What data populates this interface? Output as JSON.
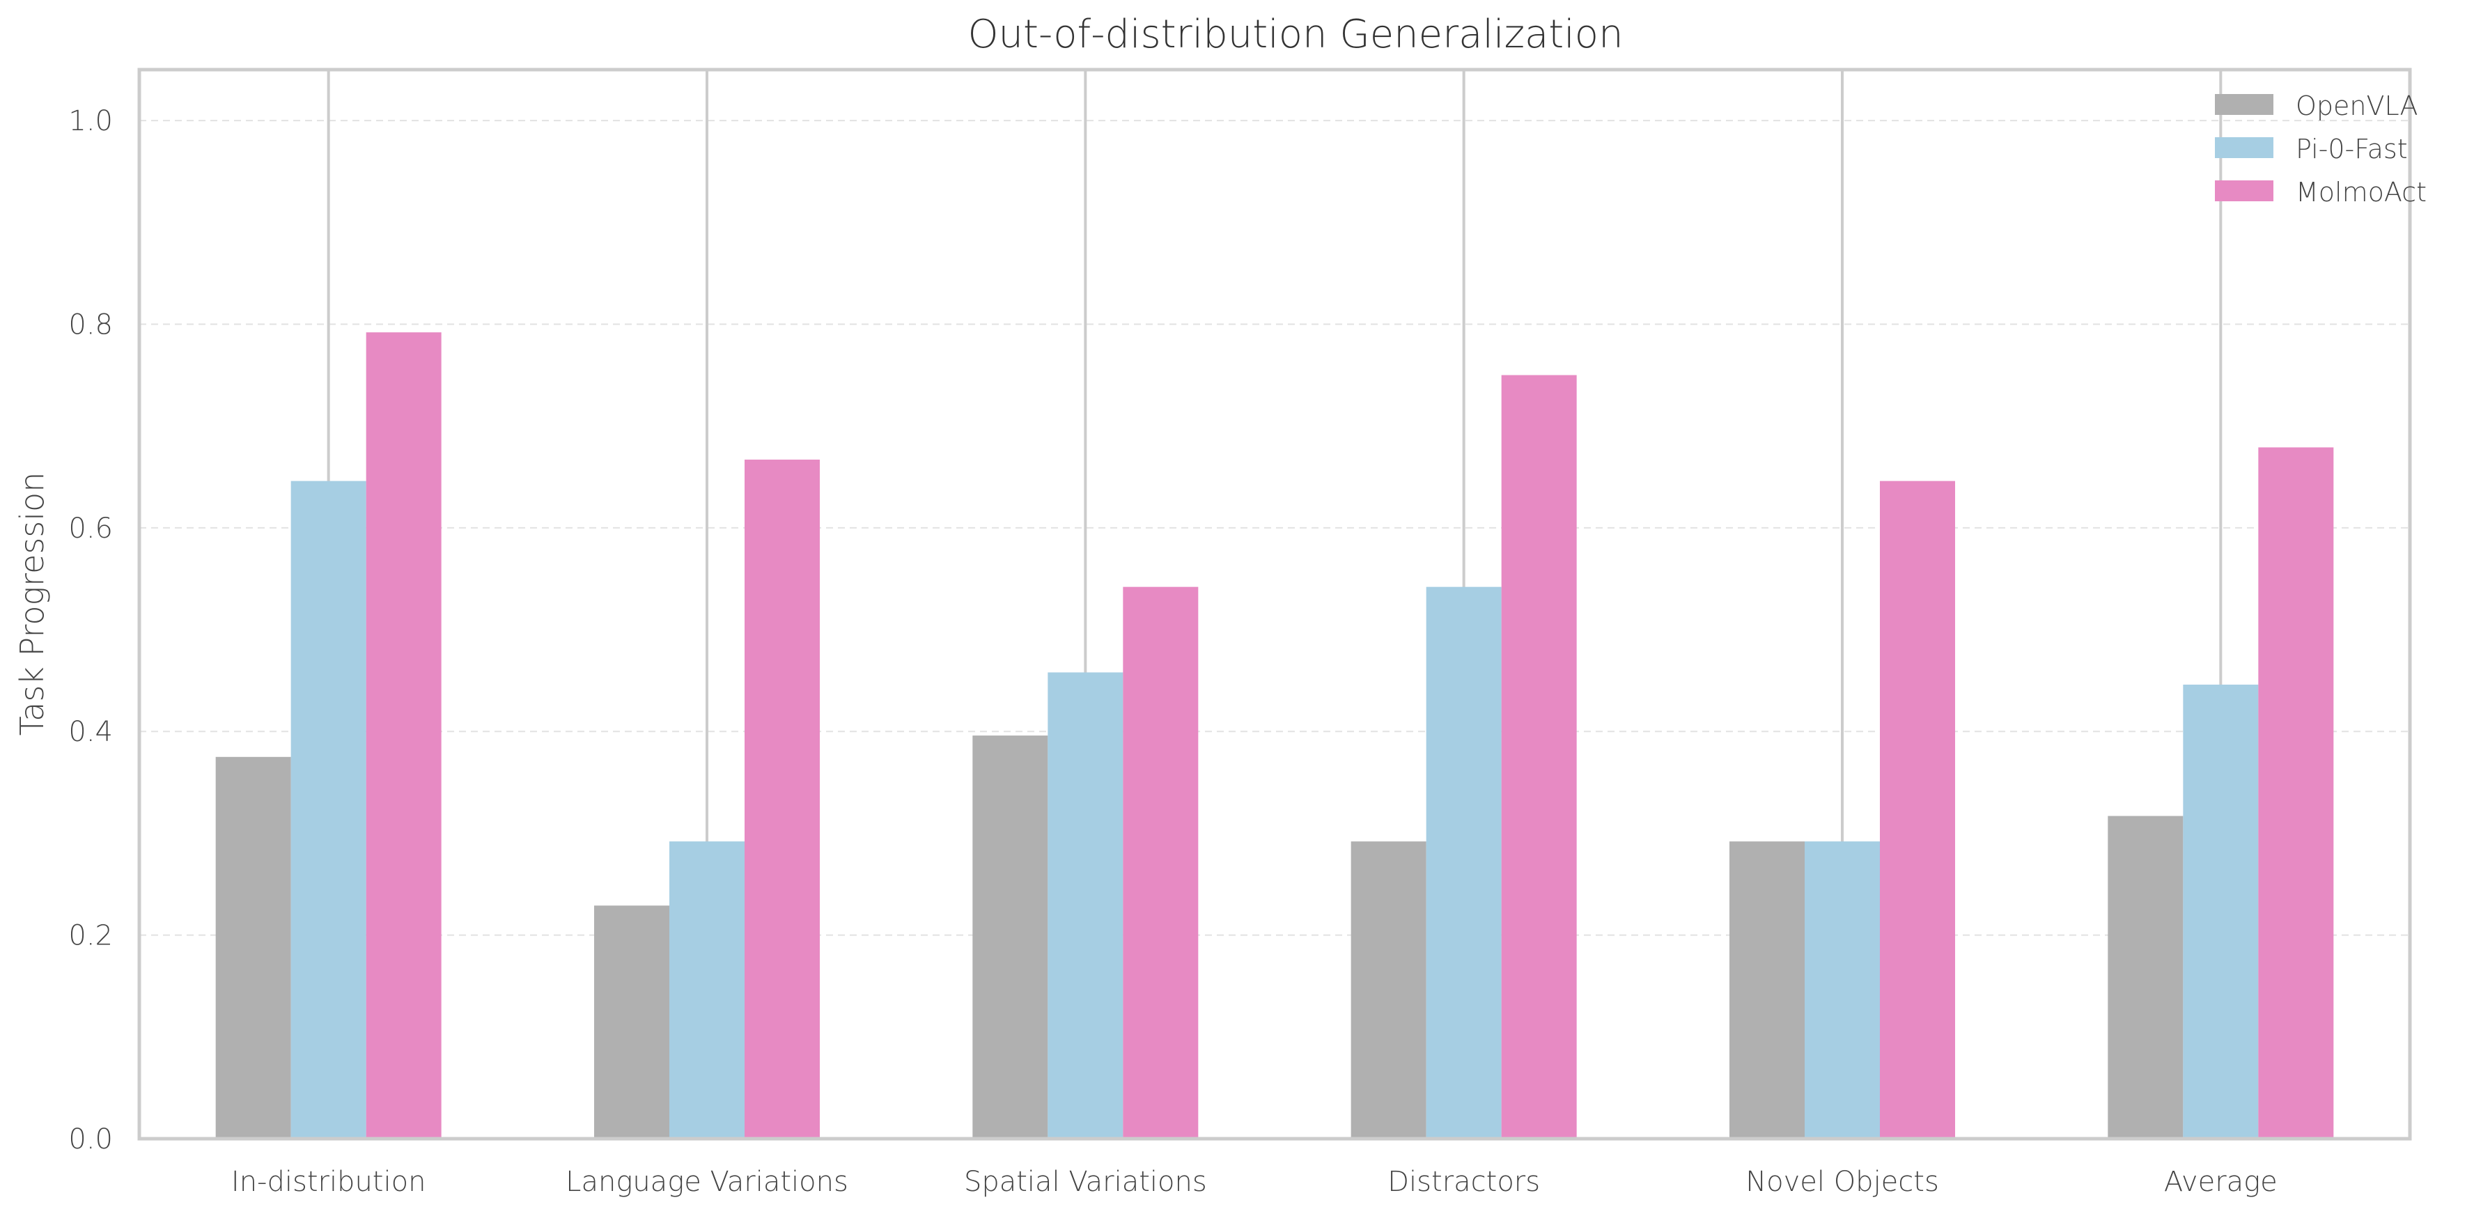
{
  "chart_data": {
    "type": "bar",
    "title": "Out-of-distribution Generalization",
    "xlabel": "",
    "ylabel": "Task Progression",
    "ylim": [
      0,
      1.05
    ],
    "yticks": [
      "0.0",
      "0.2",
      "0.4",
      "0.6",
      "0.8",
      "1.0"
    ],
    "grid": true,
    "legend_position": "top-right",
    "categories": [
      "In-distribution",
      "Language Variations",
      "Spatial Variations",
      "Distractors",
      "Novel Objects",
      "Average"
    ],
    "series": [
      {
        "name": "OpenVLA",
        "color": "#b0b0b0",
        "values": [
          0.375,
          0.229,
          0.396,
          0.292,
          0.292,
          0.317
        ]
      },
      {
        "name": "Pi-0-Fast",
        "color": "#a6cee3",
        "values": [
          0.646,
          0.292,
          0.458,
          0.542,
          0.292,
          0.446
        ]
      },
      {
        "name": "MolmoAct",
        "color": "#e78ac3",
        "values": [
          0.792,
          0.667,
          0.542,
          0.75,
          0.646,
          0.679
        ]
      }
    ]
  }
}
